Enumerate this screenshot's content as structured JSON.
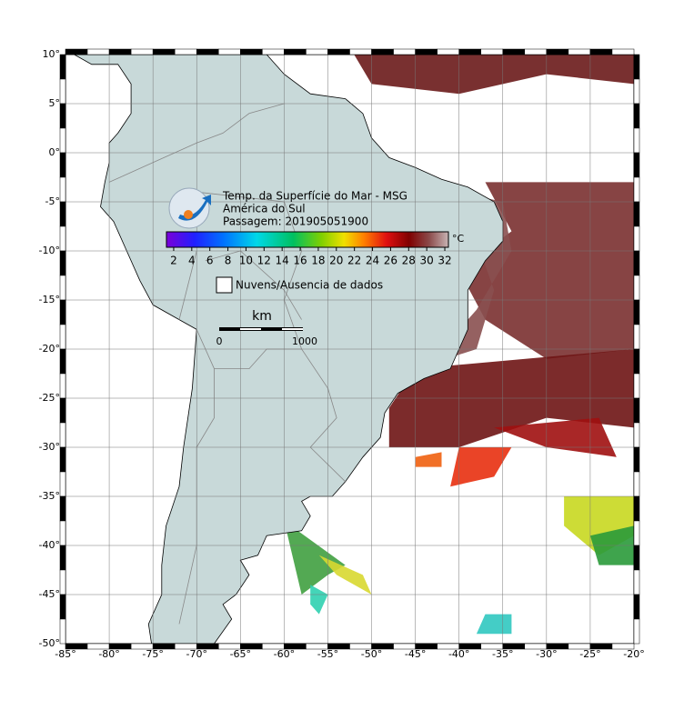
{
  "map": {
    "lon_ticks": [
      {
        "value": -85,
        "label": "-85°"
      },
      {
        "value": -80,
        "label": "-80°"
      },
      {
        "value": -75,
        "label": "-75°"
      },
      {
        "value": -70,
        "label": "-70°"
      },
      {
        "value": -65,
        "label": "-65°"
      },
      {
        "value": -60,
        "label": "-60°"
      },
      {
        "value": -55,
        "label": "-55°"
      },
      {
        "value": -50,
        "label": "-50°"
      },
      {
        "value": -45,
        "label": "-45°"
      },
      {
        "value": -40,
        "label": "-40°"
      },
      {
        "value": -35,
        "label": "-35°"
      },
      {
        "value": -30,
        "label": "-30°"
      },
      {
        "value": -25,
        "label": "-25°"
      },
      {
        "value": -20,
        "label": "-20°"
      }
    ],
    "lat_ticks": [
      {
        "value": 10,
        "label": "10°"
      },
      {
        "value": 5,
        "label": "5°"
      },
      {
        "value": 0,
        "label": "0°"
      },
      {
        "value": -5,
        "label": "-5°"
      },
      {
        "value": -10,
        "label": "-10°"
      },
      {
        "value": -15,
        "label": "-15°"
      },
      {
        "value": -20,
        "label": "-20°"
      },
      {
        "value": -25,
        "label": "-25°"
      },
      {
        "value": -30,
        "label": "-30°"
      },
      {
        "value": -35,
        "label": "-35°"
      },
      {
        "value": -40,
        "label": "-40°"
      },
      {
        "value": -45,
        "label": "-45°"
      },
      {
        "value": -50,
        "label": "-50°"
      }
    ]
  },
  "legend": {
    "title_lines": [
      "Temp. da Superfície do Mar - MSG",
      "América do Sul",
      "Passagem: 201905051900"
    ],
    "colorbar": {
      "range": [
        1.2,
        32.4
      ],
      "ticks": [
        2,
        4,
        6,
        8,
        10,
        12,
        14,
        16,
        18,
        20,
        22,
        24,
        26,
        28,
        30,
        32
      ],
      "unit": "°C"
    },
    "no_data": "Nuvens/Ausencia de dados"
  },
  "scale_bar": {
    "unit": "km",
    "labels": [
      "0",
      "1000"
    ]
  }
}
